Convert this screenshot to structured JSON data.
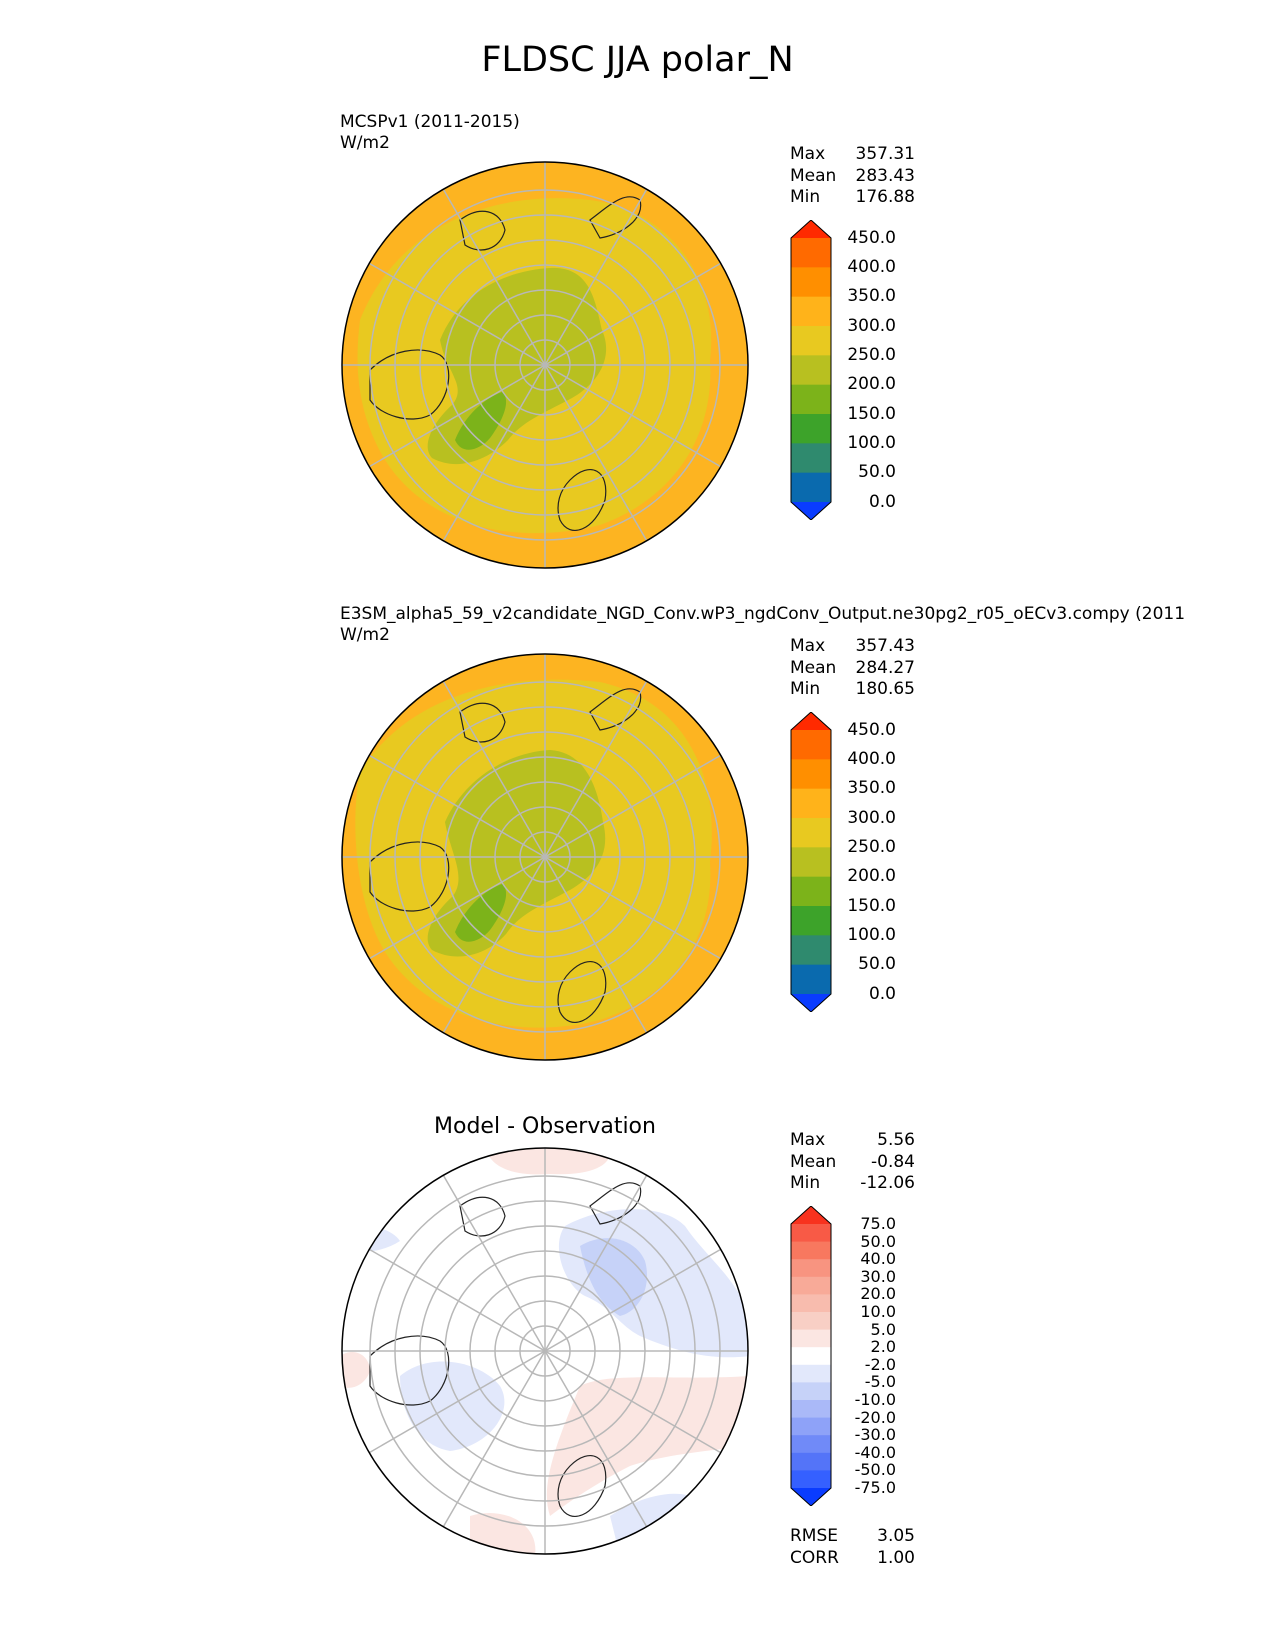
{
  "title": "FLDSC JJA polar_N",
  "panels": [
    {
      "title_line1": "MCSPv1 (2011-2015)",
      "title_line2": "W/m2",
      "stats": [
        {
          "label": "Max",
          "value": "357.31"
        },
        {
          "label": "Mean",
          "value": "283.43"
        },
        {
          "label": "Min",
          "value": "176.88"
        }
      ],
      "colorbar": {
        "labels": [
          "450.0",
          "400.0",
          "350.0",
          "300.0",
          "250.0",
          "200.0",
          "150.0",
          "100.0",
          "50.0",
          "0.0"
        ],
        "colors": [
          "#ff2a00",
          "#ff6a00",
          "#ff8f00",
          "#ffb31a",
          "#e8c920",
          "#b8c020",
          "#7cb31a",
          "#3da32a",
          "#2f8a6e",
          "#0a6aae",
          "#0a3cff"
        ]
      }
    },
    {
      "title_line1": "E3SM_alpha5_59_v2candidate_NGD_Conv.wP3_ngdConv_Output.ne30pg2_r05_oECv3.compy (2011",
      "title_line2": "W/m2",
      "stats": [
        {
          "label": "Max",
          "value": "357.43"
        },
        {
          "label": "Mean",
          "value": "284.27"
        },
        {
          "label": "Min",
          "value": "180.65"
        }
      ],
      "colorbar": {
        "labels": [
          "450.0",
          "400.0",
          "350.0",
          "300.0",
          "250.0",
          "200.0",
          "150.0",
          "100.0",
          "50.0",
          "0.0"
        ],
        "colors": [
          "#ff2a00",
          "#ff6a00",
          "#ff8f00",
          "#ffb31a",
          "#e8c920",
          "#b8c020",
          "#7cb31a",
          "#3da32a",
          "#2f8a6e",
          "#0a6aae",
          "#0a3cff"
        ]
      }
    },
    {
      "title": "Model - Observation",
      "stats": [
        {
          "label": "Max",
          "value": "5.56"
        },
        {
          "label": "Mean",
          "value": "-0.84"
        },
        {
          "label": "Min",
          "value": "-12.06"
        }
      ],
      "colorbar": {
        "labels": [
          "75.0",
          "50.0",
          "40.0",
          "30.0",
          "20.0",
          "10.0",
          "5.0",
          "2.0",
          "-2.0",
          "-5.0",
          "-10.0",
          "-20.0",
          "-30.0",
          "-40.0",
          "-50.0",
          "-75.0"
        ],
        "colors": [
          "#f8321e",
          "#f85a46",
          "#f8785f",
          "#f89480",
          "#f8aa98",
          "#f8bcae",
          "#f8cfc5",
          "#fbe6e2",
          "#ffffff",
          "#e2e8fb",
          "#c6d2f8",
          "#aab9f8",
          "#8ea2f8",
          "#708af8",
          "#5474f8",
          "#3560ff",
          "#0a3cff"
        ]
      },
      "rmse_label": "RMSE",
      "rmse_value": "3.05",
      "corr_label": "CORR",
      "corr_value": "1.00"
    }
  ]
}
